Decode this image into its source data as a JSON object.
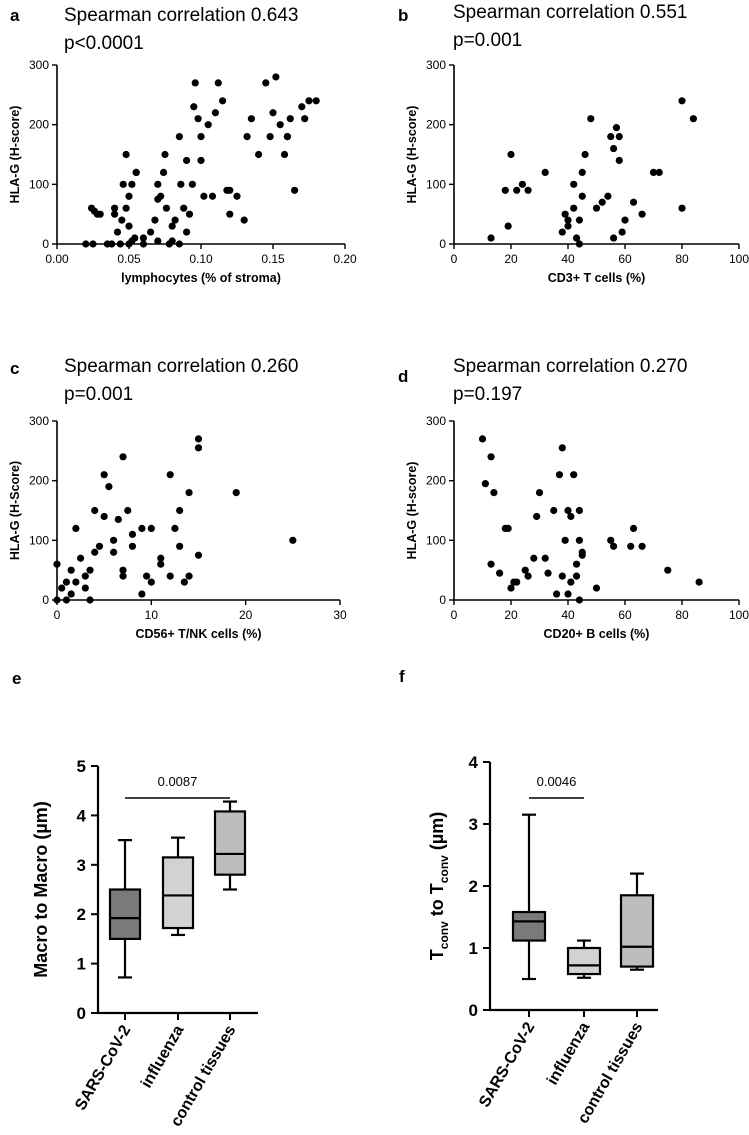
{
  "chart_data": [
    {
      "type": "scatter",
      "panel": "a",
      "title_line1": "Spearman correlation 0.643",
      "title_line2": "p<0.0001",
      "xlabel": "lymphocytes (% of stroma)",
      "ylabel": "HLA-G (H-score)",
      "xlim": [
        0,
        0.2
      ],
      "ylim": [
        0,
        300
      ],
      "xticks": [
        0.0,
        0.05,
        0.1,
        0.15,
        0.2
      ],
      "xtick_labels": [
        "0.00",
        "0.05",
        "0.10",
        "0.15",
        "0.20"
      ],
      "yticks": [
        0,
        100,
        200,
        300
      ],
      "ytick_labels": [
        "0",
        "100",
        "200",
        "300"
      ],
      "x": [
        0.02,
        0.025,
        0.03,
        0.035,
        0.024,
        0.026,
        0.028,
        0.038,
        0.04,
        0.042,
        0.04,
        0.045,
        0.044,
        0.046,
        0.048,
        0.05,
        0.05,
        0.052,
        0.054,
        0.055,
        0.048,
        0.05,
        0.052,
        0.055,
        0.06,
        0.06,
        0.065,
        0.068,
        0.07,
        0.07,
        0.072,
        0.074,
        0.075,
        0.076,
        0.078,
        0.08,
        0.08,
        0.082,
        0.085,
        0.086,
        0.088,
        0.09,
        0.09,
        0.092,
        0.094,
        0.095,
        0.096,
        0.098,
        0.1,
        0.1,
        0.102,
        0.105,
        0.108,
        0.11,
        0.112,
        0.115,
        0.118,
        0.12,
        0.12,
        0.125,
        0.13,
        0.132,
        0.135,
        0.14,
        0.145,
        0.148,
        0.15,
        0.152,
        0.155,
        0.158,
        0.16,
        0.16,
        0.162,
        0.165,
        0.17,
        0.172,
        0.175,
        0.18,
        0.07,
        0.085
      ],
      "y": [
        0,
        0,
        50,
        0,
        60,
        55,
        50,
        0,
        60,
        20,
        50,
        40,
        0,
        100,
        150,
        30,
        0,
        5,
        10,
        120,
        60,
        80,
        100,
        120,
        10,
        0,
        20,
        40,
        75,
        100,
        80,
        120,
        150,
        60,
        0,
        5,
        30,
        40,
        180,
        100,
        60,
        140,
        20,
        50,
        100,
        230,
        270,
        210,
        180,
        140,
        80,
        200,
        80,
        220,
        270,
        240,
        90,
        90,
        50,
        80,
        40,
        180,
        210,
        150,
        270,
        180,
        220,
        280,
        200,
        150,
        180,
        180,
        210,
        90,
        230,
        210,
        240,
        240,
        5,
        0
      ]
    },
    {
      "type": "scatter",
      "panel": "b",
      "title_line1": "Spearman correlation 0.551",
      "title_line2": "p=0.001",
      "xlabel": "CD3+ T cells (%)",
      "ylabel": "HLA-G (H-score)",
      "xlim": [
        0,
        100
      ],
      "ylim": [
        0,
        300
      ],
      "xticks": [
        0,
        20,
        40,
        60,
        80,
        100
      ],
      "xtick_labels": [
        "0",
        "20",
        "40",
        "60",
        "80",
        "100"
      ],
      "yticks": [
        0,
        100,
        200,
        300
      ],
      "ytick_labels": [
        "0",
        "100",
        "200",
        "300"
      ],
      "x": [
        13,
        18,
        19,
        20,
        22,
        24,
        26,
        32,
        38,
        39,
        40,
        40,
        42,
        42,
        43,
        44,
        44,
        45,
        45,
        46,
        48,
        50,
        52,
        54,
        55,
        56,
        56,
        57,
        58,
        58,
        59,
        60,
        63,
        66,
        70,
        72,
        80,
        80,
        84
      ],
      "y": [
        10,
        90,
        30,
        150,
        90,
        100,
        90,
        120,
        20,
        50,
        40,
        30,
        60,
        100,
        10,
        40,
        0,
        120,
        80,
        150,
        210,
        60,
        70,
        80,
        180,
        10,
        160,
        195,
        140,
        180,
        20,
        40,
        70,
        50,
        120,
        120,
        60,
        240,
        210
      ]
    },
    {
      "type": "scatter",
      "panel": "c",
      "title_line1": "Spearman correlation 0.260",
      "title_line2": "p=0.001",
      "xlabel": "CD56+ T/NK cells (%)",
      "ylabel": "HLA-G (H-Score)",
      "xlim": [
        0,
        30
      ],
      "ylim": [
        0,
        300
      ],
      "xticks": [
        0,
        10,
        20,
        30
      ],
      "xtick_labels": [
        "0",
        "10",
        "20",
        "30"
      ],
      "yticks": [
        0,
        100,
        200,
        300
      ],
      "ytick_labels": [
        "0",
        "100",
        "200",
        "300"
      ],
      "x": [
        0,
        0,
        0.5,
        1,
        1,
        1.5,
        1.5,
        2,
        2,
        2.5,
        3,
        3,
        3.5,
        3.5,
        4,
        4,
        4.5,
        5,
        5,
        5.5,
        6,
        6,
        6.5,
        7,
        7,
        7,
        7.5,
        8,
        8,
        9,
        9,
        9.5,
        10,
        10,
        11,
        11,
        12,
        12,
        12.5,
        13,
        13,
        13.5,
        14,
        14,
        15,
        15,
        15,
        19,
        25
      ],
      "y": [
        0,
        60,
        20,
        30,
        0,
        10,
        50,
        120,
        30,
        70,
        20,
        40,
        50,
        0,
        150,
        80,
        90,
        140,
        210,
        190,
        100,
        80,
        135,
        240,
        40,
        50,
        150,
        90,
        110,
        120,
        10,
        40,
        30,
        120,
        70,
        60,
        40,
        210,
        120,
        150,
        90,
        30,
        180,
        40,
        255,
        270,
        75,
        180,
        100
      ]
    },
    {
      "type": "scatter",
      "panel": "d",
      "title_line1": "Spearman correlation 0.270",
      "title_line2": "p=0.197",
      "xlabel": "CD20+ B cells (%)",
      "ylabel": "HLA-G (H-score)",
      "xlim": [
        0,
        100
      ],
      "ylim": [
        0,
        300
      ],
      "xticks": [
        0,
        20,
        40,
        60,
        80,
        100
      ],
      "xtick_labels": [
        "0",
        "20",
        "40",
        "60",
        "80",
        "100"
      ],
      "yticks": [
        0,
        100,
        200,
        300
      ],
      "ytick_labels": [
        "0",
        "100",
        "200",
        "300"
      ],
      "x": [
        10,
        11,
        13,
        14,
        13,
        16,
        18,
        19,
        20,
        21,
        22,
        25,
        26,
        28,
        29,
        30,
        32,
        33,
        35,
        36,
        37,
        38,
        38,
        39,
        40,
        40,
        41,
        41,
        42,
        43,
        43,
        44,
        44,
        44,
        45,
        45,
        50,
        55,
        56,
        62,
        63,
        66,
        75,
        86
      ],
      "y": [
        270,
        195,
        240,
        180,
        60,
        45,
        120,
        120,
        20,
        30,
        30,
        50,
        40,
        70,
        140,
        180,
        70,
        45,
        150,
        10,
        210,
        255,
        40,
        100,
        150,
        10,
        30,
        140,
        210,
        40,
        60,
        100,
        0,
        150,
        80,
        75,
        20,
        100,
        90,
        90,
        120,
        90,
        50,
        30
      ]
    },
    {
      "type": "box",
      "panel": "e",
      "ylabel": "Macro to Macro (µm)",
      "categories": [
        "SARS-CoV-2",
        "influenza",
        "control tissues"
      ],
      "ylim": [
        0,
        5
      ],
      "yticks": [
        0,
        1,
        2,
        3,
        4,
        5
      ],
      "ytick_labels": [
        "0",
        "1",
        "2",
        "3",
        "4",
        "5"
      ],
      "boxes": [
        {
          "min": 0.72,
          "q1": 1.5,
          "median": 1.92,
          "q3": 2.5,
          "max": 3.5,
          "color": "#7a7a7a"
        },
        {
          "min": 1.58,
          "q1": 1.72,
          "median": 2.38,
          "q3": 3.15,
          "max": 3.55,
          "color": "#d2d2d2"
        },
        {
          "min": 2.5,
          "q1": 2.8,
          "median": 3.22,
          "q3": 4.08,
          "max": 4.28,
          "color": "#bdbdbd"
        }
      ],
      "comparison": {
        "from": 0,
        "to": 2,
        "label": "0.0087"
      }
    },
    {
      "type": "box",
      "panel": "f",
      "ylabel_main": "T",
      "ylabel_sub1": "conv",
      "ylabel_mid": " to T",
      "ylabel_sub2": "conv",
      "ylabel_tail": " (µm)",
      "categories": [
        "SARS-CoV-2",
        "influenza",
        "control tissues"
      ],
      "ylim": [
        0,
        4
      ],
      "yticks": [
        0,
        1,
        2,
        3,
        4
      ],
      "ytick_labels": [
        "0",
        "1",
        "2",
        "3",
        "4"
      ],
      "boxes": [
        {
          "min": 0.5,
          "q1": 1.12,
          "median": 1.43,
          "q3": 1.58,
          "max": 3.15,
          "color": "#7a7a7a"
        },
        {
          "min": 0.52,
          "q1": 0.58,
          "median": 0.72,
          "q3": 1.0,
          "max": 1.12,
          "color": "#d2d2d2"
        },
        {
          "min": 0.65,
          "q1": 0.7,
          "median": 1.02,
          "q3": 1.85,
          "max": 2.2,
          "color": "#bdbdbd"
        }
      ],
      "comparison": {
        "from": 0,
        "to": 1,
        "label": "0.0046"
      }
    }
  ]
}
